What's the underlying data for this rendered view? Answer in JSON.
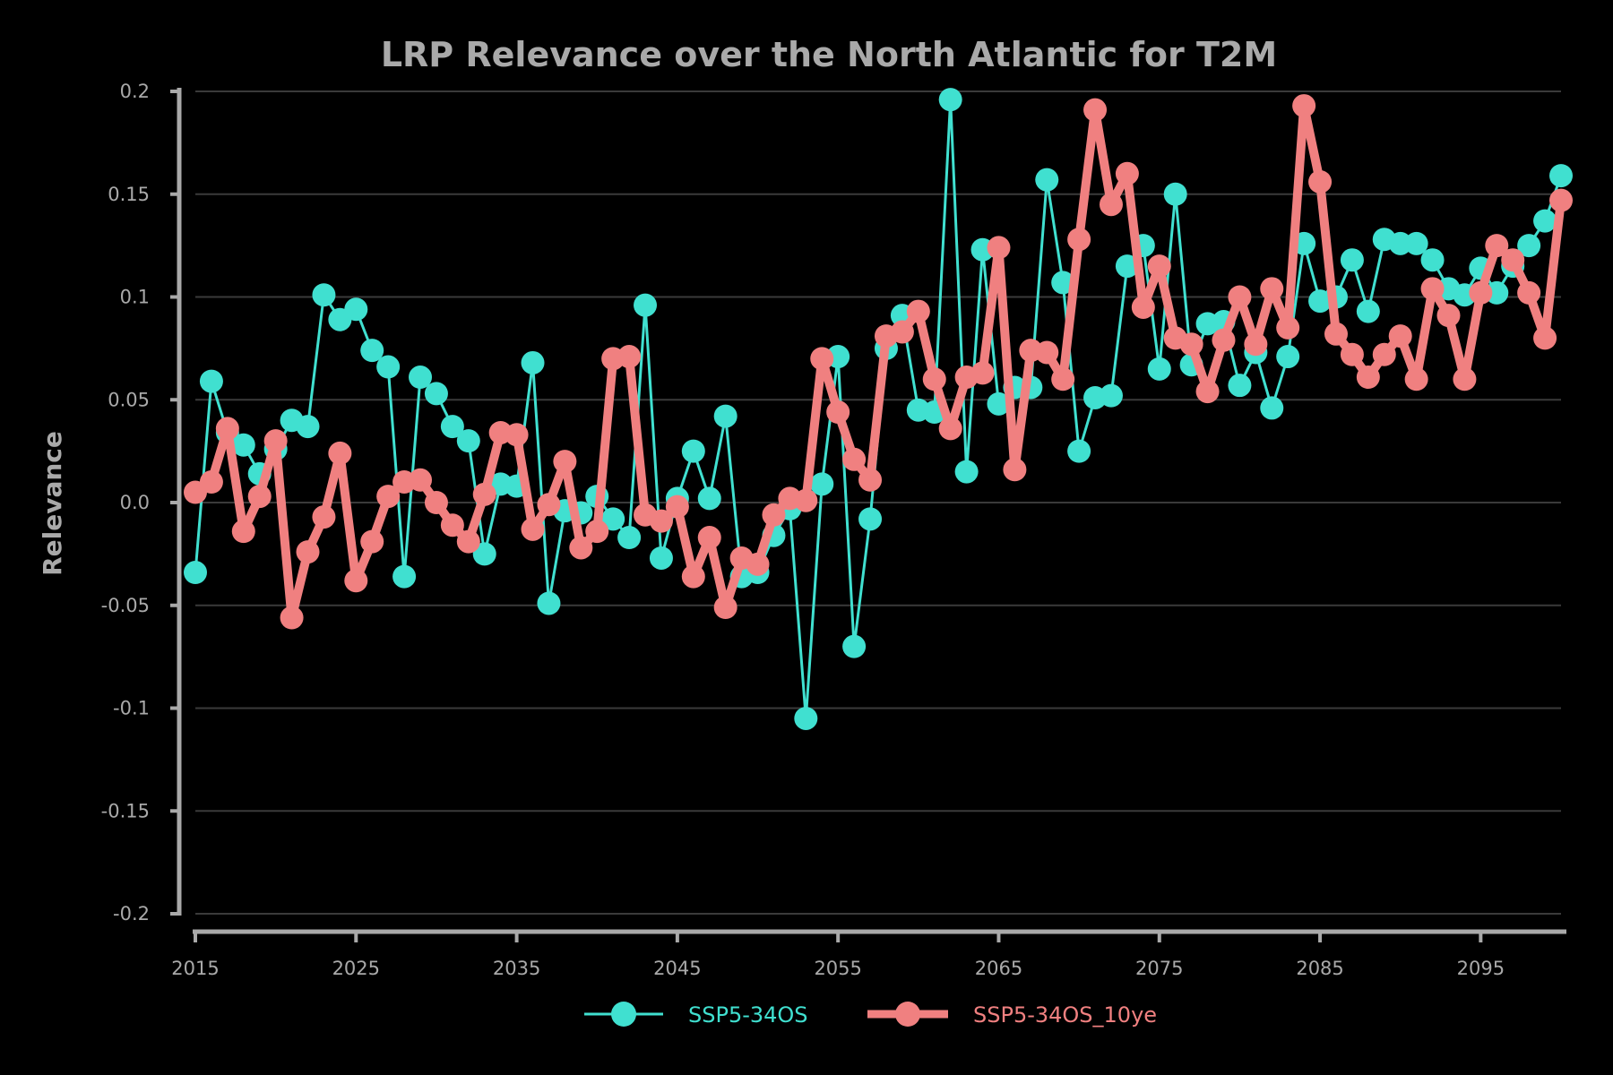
{
  "chart_data": {
    "type": "line",
    "title": "LRP Relevance over the North Atlantic for T2M",
    "xlabel": "",
    "ylabel": "Relevance",
    "xlim": [
      2015,
      2100
    ],
    "ylim": [
      -0.2,
      0.2
    ],
    "grid": true,
    "legend_position": "bottom-center",
    "x_ticks": [
      "2015",
      "2025",
      "2035",
      "2045",
      "2055",
      "2065",
      "2075",
      "2085",
      "2095"
    ],
    "y_ticks": [
      "0.2",
      "0.15",
      "0.1",
      "0.05",
      "0.0",
      "-0.05",
      "-0.1",
      "-0.15",
      "-0.2"
    ],
    "x": [
      2015,
      2016,
      2017,
      2018,
      2019,
      2020,
      2021,
      2022,
      2023,
      2024,
      2025,
      2026,
      2027,
      2028,
      2029,
      2030,
      2031,
      2032,
      2033,
      2034,
      2035,
      2036,
      2037,
      2038,
      2039,
      2040,
      2041,
      2042,
      2043,
      2044,
      2045,
      2046,
      2047,
      2048,
      2049,
      2050,
      2051,
      2052,
      2053,
      2054,
      2055,
      2056,
      2057,
      2058,
      2059,
      2060,
      2061,
      2062,
      2063,
      2064,
      2065,
      2066,
      2067,
      2068,
      2069,
      2070,
      2071,
      2072,
      2073,
      2074,
      2075,
      2076,
      2077,
      2078,
      2079,
      2080,
      2081,
      2082,
      2083,
      2084,
      2085,
      2086,
      2087,
      2088,
      2089,
      2090,
      2091,
      2092,
      2093,
      2094,
      2095,
      2096,
      2097,
      2098,
      2099,
      2100
    ],
    "series": [
      {
        "name": "SSP5-34OS",
        "color": "#40e0d0",
        "values": [
          -0.034,
          0.059,
          0.034,
          0.028,
          0.014,
          0.026,
          0.04,
          0.037,
          0.101,
          0.089,
          0.094,
          0.074,
          0.066,
          -0.036,
          0.061,
          0.053,
          0.037,
          0.03,
          -0.025,
          0.009,
          0.008,
          0.068,
          -0.049,
          -0.004,
          -0.005,
          0.003,
          -0.008,
          -0.017,
          0.096,
          -0.027,
          0.002,
          0.025,
          0.002,
          0.042,
          -0.036,
          -0.034,
          -0.016,
          -0.003,
          -0.105,
          0.009,
          0.071,
          -0.07,
          -0.008,
          0.075,
          0.091,
          0.045,
          0.044,
          0.196,
          0.015,
          0.123,
          0.048,
          0.056,
          0.056,
          0.157,
          0.107,
          0.025,
          0.051,
          0.052,
          0.115,
          0.125,
          0.065,
          0.15,
          0.067,
          0.087,
          0.088,
          0.057,
          0.073,
          0.046,
          0.071,
          0.126,
          0.098,
          0.1,
          0.118,
          0.093,
          0.128,
          0.126,
          0.126,
          0.118,
          0.104,
          0.101,
          0.114,
          0.102,
          0.115,
          0.125,
          0.137,
          0.159
        ]
      },
      {
        "name": "SSP5-34OS_10ye",
        "color": "#f08080",
        "values": [
          0.005,
          0.01,
          0.036,
          -0.014,
          0.003,
          0.03,
          -0.056,
          -0.024,
          -0.007,
          0.024,
          -0.038,
          -0.019,
          0.003,
          0.01,
          0.011,
          0.0,
          -0.011,
          -0.019,
          0.004,
          0.034,
          0.033,
          -0.013,
          -0.001,
          0.02,
          -0.022,
          -0.014,
          0.07,
          0.071,
          -0.006,
          -0.009,
          -0.002,
          -0.036,
          -0.017,
          -0.051,
          -0.027,
          -0.03,
          -0.006,
          0.002,
          0.001,
          0.07,
          0.044,
          0.021,
          0.011,
          0.081,
          0.083,
          0.093,
          0.06,
          0.036,
          0.061,
          0.063,
          0.124,
          0.016,
          0.074,
          0.073,
          0.06,
          0.128,
          0.191,
          0.145,
          0.16,
          0.095,
          0.115,
          0.08,
          0.077,
          0.054,
          0.079,
          0.1,
          0.077,
          0.104,
          0.085,
          0.193,
          0.156,
          0.082,
          0.072,
          0.061,
          0.072,
          0.081,
          0.06,
          0.104,
          0.091,
          0.06,
          0.102,
          0.125,
          0.118,
          0.102,
          0.08,
          0.147
        ]
      }
    ]
  }
}
